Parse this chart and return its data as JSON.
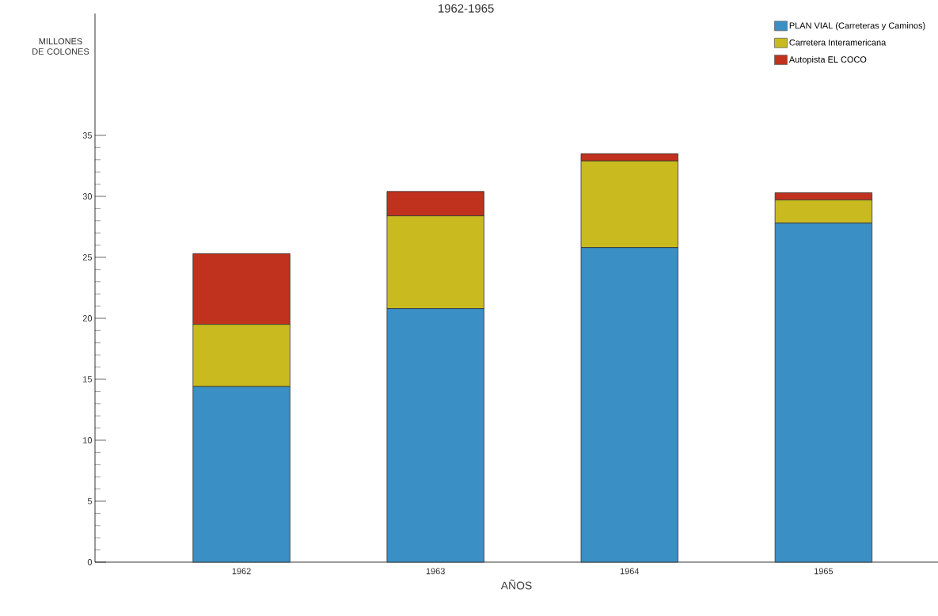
{
  "chart_data": {
    "type": "bar",
    "title": "1962-1965",
    "xlabel": "AÑOS",
    "ylabel": "MILLONES DE COLONES",
    "categories": [
      "1962",
      "1963",
      "1964",
      "1965"
    ],
    "stacked": true,
    "legend": "top right",
    "grid": false,
    "ylim": [
      0,
      45
    ],
    "yticks": [
      0,
      5,
      10,
      15,
      20,
      25,
      30,
      35
    ],
    "series": [
      {
        "name": "PLAN VIAL (Carreteras y Caminos)",
        "color": "#3a8fc4",
        "values": [
          14.4,
          20.8,
          25.8,
          27.8
        ]
      },
      {
        "name": "Carretera Interamericana",
        "color": "#c9bb1f",
        "values": [
          5.1,
          7.6,
          7.1,
          1.9
        ]
      },
      {
        "name": "Autopista EL COCO",
        "color": "#c0321e",
        "values": [
          5.8,
          2.0,
          0.6,
          0.6
        ]
      }
    ]
  }
}
